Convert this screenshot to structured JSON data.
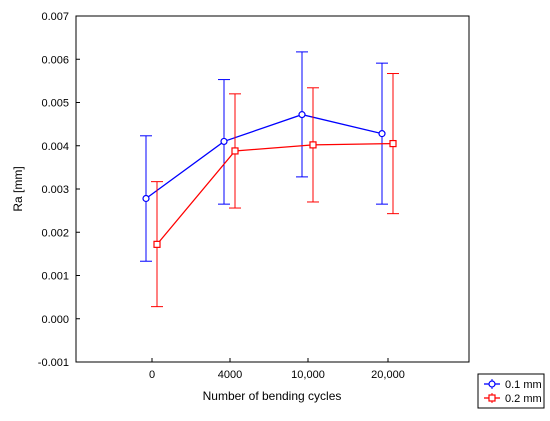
{
  "chart_data": {
    "type": "line",
    "title": "",
    "xlabel": "Number of bending cycles",
    "ylabel": "Ra [mm]",
    "categories": [
      "0",
      "4000",
      "10,000",
      "20,000"
    ],
    "ylim": [
      -0.001,
      0.007
    ],
    "yticks": [
      "0.007",
      "0.006",
      "0.005",
      "0.004",
      "0.003",
      "0.002",
      "0.001",
      "0.000",
      "-0.001"
    ],
    "ytick_values": [
      0.007,
      0.006,
      0.005,
      0.004,
      0.003,
      0.002,
      0.001,
      0.0,
      -0.001
    ],
    "grid": false,
    "legend_position": "bottom-right",
    "series": [
      {
        "name": "0.1 mm",
        "color": "#0000ff",
        "marker": "circle",
        "values": [
          0.00278,
          0.0041,
          0.00472,
          0.00428
        ],
        "error_low": [
          0.00133,
          0.00265,
          0.00328,
          0.00265
        ],
        "error_high": [
          0.00423,
          0.00553,
          0.00617,
          0.00591
        ]
      },
      {
        "name": "0.2 mm",
        "color": "#ff0000",
        "marker": "square",
        "values": [
          0.00172,
          0.00388,
          0.00402,
          0.00405
        ],
        "error_low": [
          0.00028,
          0.00256,
          0.0027,
          0.00243
        ],
        "error_high": [
          0.00317,
          0.0052,
          0.00534,
          0.00567
        ]
      }
    ]
  }
}
